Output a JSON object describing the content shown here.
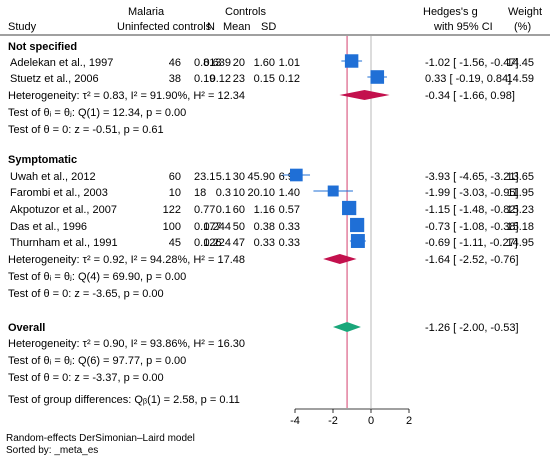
{
  "headers": {
    "study": "Study",
    "group1": "Malaria",
    "group1_sub": "Uninfected controls",
    "n1": "N",
    "group2": "Controls",
    "mean2": "Mean",
    "sd2": "SD",
    "effect_line1": "Hedges's g",
    "effect_line2": "with 95% CI",
    "weight_line1": "Weight",
    "weight_line2": "(%)"
  },
  "colors": {
    "study_square": "#1f6fd6",
    "subgroup_diamond": "#c3104d",
    "overall_diamond": "#1aa67a",
    "overall_line": "#d4416e",
    "null_line": "#b8b8b8"
  },
  "groups": [
    {
      "title": "Not specified",
      "studies": [
        {
          "name": "Adelekan et al., 1997",
          "n1": "46",
          "mean1": "0.813",
          "sd1": "0.639",
          "n2": "20",
          "mean2": "1.60",
          "sd2": "1.01",
          "ci_text": "-1.02 [ -1.56, -0.47]",
          "weight": "14.45"
        },
        {
          "name": "Stuetz et al., 2006",
          "n1": "38",
          "mean1": "0.19",
          "sd1": "0.12",
          "n2": "23",
          "mean2": "0.15",
          "sd2": "0.12",
          "ci_text": "0.33 [ -0.19,  0.84]",
          "weight": "14.59"
        }
      ],
      "heterogeneity": "Heterogeneity: τ² = 0.83, I² = 91.90%, H² = 12.34",
      "pooled_text": "-0.34 [ -1.66,  0.98]",
      "test_equal": "Test of θᵢ = θⱼ: Q(1) = 12.34, p = 0.00",
      "test_zero": "Test of θ = 0: z = -0.51, p = 0.61"
    },
    {
      "title": "Symptomatic",
      "studies": [
        {
          "name": "Uwah et al., 2012",
          "n1": "60",
          "mean1": "23.1",
          "sd1": "5.1",
          "n2": "30",
          "mean2": "45.90",
          "sd2": "6.90",
          "ci_text": "-3.93 [ -4.65, -3.21]",
          "weight": "13.65"
        },
        {
          "name": "Farombi et al., 2003",
          "n1": "10",
          "mean1": "18",
          "sd1": "0.3",
          "n2": "10",
          "mean2": "20.10",
          "sd2": "1.40",
          "ci_text": "-1.99 [ -3.03, -0.95]",
          "weight": "11.95"
        },
        {
          "name": "Akpotuzor et al., 2007",
          "n1": "122",
          "mean1": "0.77",
          "sd1": "0.1",
          "n2": "60",
          "mean2": "1.16",
          "sd2": "0.57",
          "ci_text": "-1.15 [ -1.48, -0.82]",
          "weight": "15.23"
        },
        {
          "name": "Das et al., 1996",
          "n1": "100",
          "mean1": "0.177",
          "sd1": "0.244",
          "n2": "50",
          "mean2": "0.38",
          "sd2": "0.33",
          "ci_text": "-0.73 [ -1.08, -0.38]",
          "weight": "15.18"
        },
        {
          "name": "Thurnham et al., 1991",
          "n1": "45",
          "mean1": "0.126",
          "sd1": "0.224",
          "n2": "47",
          "mean2": "0.33",
          "sd2": "0.33",
          "ci_text": "-0.69 [ -1.11, -0.27]",
          "weight": "14.95"
        }
      ],
      "heterogeneity": "Heterogeneity: τ² = 0.92, I² = 94.28%, H² = 17.48",
      "pooled_text": "-1.64 [ -2.52, -0.76]",
      "test_equal": "Test of θᵢ = θⱼ: Q(4) = 69.90, p = 0.00",
      "test_zero": "Test of θ = 0: z = -3.65, p = 0.00"
    }
  ],
  "overall": {
    "title": "Overall",
    "heterogeneity": "Heterogeneity: τ² = 0.90, I² = 93.86%, H² = 16.30",
    "pooled_text": "-1.26 [ -2.00, -0.53]",
    "test_equal": "Test of θᵢ = θⱼ: Q(6) = 97.77, p = 0.00",
    "test_zero": "Test of θ = 0: z = -3.37, p = 0.00"
  },
  "group_test": "Test of group differences: Qᵦ(1) = 2.58, p = 0.11",
  "footer": {
    "model": "Random-effects DerSimonian–Laird model",
    "sorted": "Sorted by: _meta_es"
  },
  "chart_data": {
    "type": "scatter",
    "xlim": [
      -4.8,
      2.0
    ],
    "xticks": [
      "-4",
      "-2",
      "0",
      "2"
    ],
    "xtick_values": [
      -4,
      -2,
      0,
      2
    ],
    "null_line": 0,
    "overall_line": -1.26,
    "series": [
      {
        "y_labels": [
          "Adelekan et al., 1997",
          "Stuetz et al., 2006"
        ],
        "x": [
          -1.02,
          0.33
        ],
        "lo": [
          -1.56,
          -0.19
        ],
        "hi": [
          -0.47,
          0.84
        ],
        "weight": [
          14.45,
          14.59
        ]
      },
      {
        "y_labels": [
          "Uwah et al., 2012",
          "Farombi et al., 2003",
          "Akpotuzor et al., 2007",
          "Das et al., 1996",
          "Thurnham et al., 1991"
        ],
        "x": [
          -3.93,
          -1.99,
          -1.15,
          -0.73,
          -0.69
        ],
        "lo": [
          -4.65,
          -3.03,
          -1.48,
          -1.08,
          -1.11
        ],
        "hi": [
          -3.21,
          -0.95,
          -0.82,
          -0.38,
          -0.27
        ],
        "weight": [
          13.65,
          11.95,
          15.23,
          15.18,
          14.95
        ]
      }
    ],
    "pooled": [
      {
        "x": -0.34,
        "lo": -1.66,
        "hi": 0.98
      },
      {
        "x": -1.64,
        "lo": -2.52,
        "hi": -0.76
      }
    ],
    "overall": {
      "x": -1.26,
      "lo": -2.0,
      "hi": -0.53
    }
  }
}
